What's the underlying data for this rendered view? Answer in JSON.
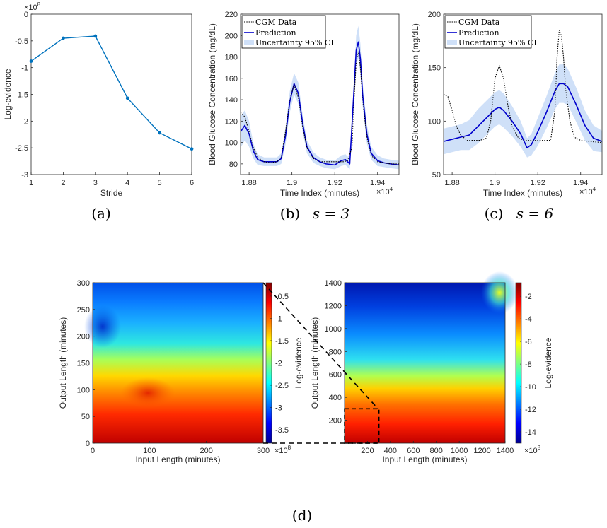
{
  "colors": {
    "line": "#0072BD",
    "pred": "#0000CC",
    "ci": "#cfe0f8",
    "axis": "#262626"
  },
  "captions": {
    "a": "(a)",
    "b_prefix": "(b)",
    "b_math": "s = 3",
    "c_prefix": "(c)",
    "c_math": "s = 6",
    "d": "(d)"
  },
  "chart_data": [
    {
      "id": "a",
      "type": "line",
      "xlabel": "Stride",
      "ylabel": "Log-evidence",
      "exponent": "×10",
      "exponent_power": "8",
      "x": [
        1,
        2,
        3,
        4,
        5,
        6
      ],
      "y": [
        -0.88,
        -0.45,
        -0.41,
        -1.57,
        -2.22,
        -2.52
      ],
      "xlim": [
        1,
        6
      ],
      "ylim": [
        -3,
        0
      ],
      "xticks": [
        "1",
        "2",
        "3",
        "4",
        "5",
        "6"
      ],
      "yticks": [
        "0",
        "-0.5",
        "-1",
        "-1.5",
        "-2",
        "-2.5",
        "-3"
      ]
    },
    {
      "id": "b",
      "type": "line",
      "xlabel": "Time Index (minutes)",
      "ylabel": "Blood Glucose Concentration (mg/dL)",
      "exponent": "×10",
      "exponent_power": "4",
      "xlim": [
        1.876,
        1.95
      ],
      "ylim": [
        70,
        220
      ],
      "xticks": [
        "1.88",
        "1.9",
        "1.92",
        "1.94"
      ],
      "yticks": [
        "80",
        "100",
        "120",
        "140",
        "160",
        "180",
        "200",
        "220"
      ],
      "legend": [
        "CGM Data",
        "Prediction",
        "Uncertainty 95% CI"
      ],
      "series": [
        {
          "name": "CGM Data",
          "x": [
            1.876,
            1.878,
            1.88,
            1.882,
            1.884,
            1.887,
            1.89,
            1.893,
            1.895,
            1.897,
            1.899,
            1.901,
            1.903,
            1.905,
            1.907,
            1.91,
            1.913,
            1.916,
            1.92,
            1.924,
            1.926,
            1.928,
            1.929,
            1.93,
            1.931,
            1.932,
            1.933,
            1.935,
            1.937,
            1.94,
            1.943,
            1.946,
            1.95
          ],
          "y": [
            128,
            124,
            110,
            95,
            86,
            82,
            81,
            82,
            86,
            110,
            140,
            154,
            142,
            115,
            95,
            85,
            82,
            82,
            82,
            82,
            83,
            95,
            140,
            175,
            185,
            170,
            140,
            105,
            88,
            82,
            81,
            80,
            80
          ]
        },
        {
          "name": "Prediction",
          "x": [
            1.876,
            1.878,
            1.88,
            1.882,
            1.884,
            1.887,
            1.89,
            1.893,
            1.895,
            1.897,
            1.899,
            1.901,
            1.903,
            1.905,
            1.907,
            1.91,
            1.913,
            1.916,
            1.92,
            1.923,
            1.925,
            1.927,
            1.929,
            1.93,
            1.931,
            1.932,
            1.933,
            1.935,
            1.937,
            1.94,
            1.943,
            1.946,
            1.95
          ],
          "y": [
            110,
            116,
            108,
            92,
            84,
            82,
            82,
            82,
            85,
            106,
            138,
            155,
            146,
            118,
            96,
            86,
            82,
            80,
            79,
            83,
            84,
            80,
            150,
            186,
            194,
            178,
            145,
            108,
            90,
            83,
            81,
            80,
            79
          ]
        }
      ],
      "ci_halfwidth": [
        15,
        14,
        12,
        7,
        5,
        4,
        4,
        4,
        5,
        8,
        10,
        10,
        10,
        8,
        6,
        5,
        4,
        4,
        4,
        5,
        5,
        5,
        10,
        14,
        15,
        14,
        11,
        9,
        6,
        5,
        4,
        4,
        4
      ]
    },
    {
      "id": "c",
      "type": "line",
      "xlabel": "Time Index (minutes)",
      "ylabel": "Blood Glucose Concentration (mg/dL)",
      "exponent": "×10",
      "exponent_power": "4",
      "xlim": [
        1.876,
        1.95
      ],
      "ylim": [
        50,
        200
      ],
      "xticks": [
        "1.88",
        "1.9",
        "1.92",
        "1.94"
      ],
      "yticks": [
        "50",
        "100",
        "150",
        "200"
      ],
      "legend": [
        "CGM Data",
        "Prediction",
        "Uncertainty 95% CI"
      ],
      "series": [
        {
          "name": "CGM Data",
          "x": [
            1.876,
            1.878,
            1.88,
            1.882,
            1.884,
            1.887,
            1.89,
            1.893,
            1.896,
            1.898,
            1.9,
            1.902,
            1.904,
            1.906,
            1.908,
            1.911,
            1.914,
            1.918,
            1.922,
            1.926,
            1.928,
            1.929,
            1.93,
            1.931,
            1.932,
            1.933,
            1.935,
            1.937,
            1.94,
            1.944,
            1.95
          ],
          "y": [
            125,
            123,
            110,
            95,
            87,
            82,
            82,
            82,
            84,
            100,
            140,
            152,
            140,
            115,
            95,
            84,
            82,
            82,
            82,
            82,
            110,
            160,
            185,
            180,
            160,
            130,
            100,
            85,
            82,
            81,
            80
          ]
        },
        {
          "name": "Prediction",
          "x": [
            1.876,
            1.88,
            1.884,
            1.888,
            1.892,
            1.896,
            1.9,
            1.902,
            1.904,
            1.908,
            1.912,
            1.915,
            1.917,
            1.92,
            1.924,
            1.928,
            1.93,
            1.932,
            1.934,
            1.938,
            1.942,
            1.946,
            1.95
          ],
          "y": [
            81,
            83,
            85,
            87,
            95,
            103,
            111,
            113,
            110,
            100,
            88,
            75,
            78,
            90,
            108,
            128,
            135,
            135,
            132,
            115,
            96,
            84,
            81
          ]
        }
      ],
      "ci_halfwidth": [
        12,
        12,
        12,
        14,
        16,
        16,
        16,
        16,
        16,
        14,
        12,
        9,
        10,
        13,
        15,
        17,
        18,
        18,
        17,
        16,
        14,
        12,
        10
      ]
    },
    {
      "id": "d-left",
      "type": "heatmap",
      "xlabel": "Input Length (minutes)",
      "ylabel": "Output Length (minutes)",
      "xlim": [
        0,
        300
      ],
      "ylim": [
        0,
        300
      ],
      "xticks": [
        "0",
        "100",
        "200",
        "300"
      ],
      "yticks": [
        "0",
        "50",
        "100",
        "150",
        "200",
        "250",
        "300"
      ],
      "colorbar": {
        "label": "Log-evidence",
        "ticks": [
          "-0.5",
          "-1",
          "-1.5",
          "-2",
          "-2.5",
          "-3",
          "-3.5"
        ],
        "tick_values": [
          -0.5,
          -1,
          -1.5,
          -2,
          -2.5,
          -3,
          -3.5
        ],
        "range": [
          -3.8,
          -0.2
        ],
        "exponent": "×10",
        "exponent_power": "8"
      }
    },
    {
      "id": "d-right",
      "type": "heatmap",
      "xlabel": "Input Length (minutes)",
      "ylabel": "Output Length (minutes)",
      "xlim": [
        0,
        1400
      ],
      "ylim": [
        0,
        1400
      ],
      "xticks": [
        "200",
        "400",
        "600",
        "800",
        "1000",
        "1200",
        "1400"
      ],
      "yticks": [
        "200",
        "400",
        "600",
        "800",
        "1000",
        "1200",
        "1400"
      ],
      "zoom_box": [
        0,
        300,
        0,
        300
      ],
      "colorbar": {
        "label": "Log-evidence",
        "ticks": [
          "-2",
          "-4",
          "-6",
          "-8",
          "-10",
          "-12",
          "-14"
        ],
        "tick_values": [
          -2,
          -4,
          -6,
          -8,
          -10,
          -12,
          -14
        ],
        "range": [
          -15,
          -0.8
        ],
        "exponent": "×10",
        "exponent_power": "8"
      }
    }
  ]
}
